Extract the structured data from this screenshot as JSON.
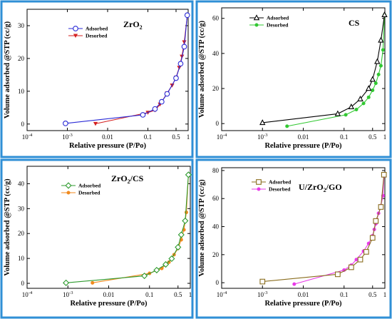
{
  "colors": {
    "frame": "#2f8fd6",
    "adsorbed": [
      "#2a2ad6",
      "#000000",
      "#2e9a2e",
      "#8a6d1e"
    ],
    "desorbed": [
      "#d42020",
      "#32c832",
      "#f08a1e",
      "#e83ae8"
    ]
  },
  "chart_data": [
    {
      "type": "line",
      "title": "ZrO",
      "title_sub": "2",
      "title_after": "",
      "xlabel": "Relative pressure (P/Po)",
      "ylabel": "Volume adsorbed @STP (cc/g)",
      "xscale": "log",
      "xlim": [
        0.0001,
        1
      ],
      "xticks": [
        0.0001,
        0.001,
        0.01,
        0.1,
        0.5,
        1
      ],
      "xticklabels": [
        "10-4",
        "10-3",
        "0.01",
        "0.1",
        "0.5",
        "1"
      ],
      "ylim": [
        -2,
        35
      ],
      "yticks": [
        0,
        10,
        20,
        30
      ],
      "yticklabels": [
        "0",
        "10",
        "20",
        "30"
      ],
      "legend": "top-left",
      "series": [
        {
          "name": "Adsorbed",
          "marker": "circle",
          "x": [
            0.0009,
            0.075,
            0.15,
            0.22,
            0.3,
            0.5,
            0.65,
            0.8,
            0.95
          ],
          "y": [
            0.2,
            2.8,
            4.6,
            6.8,
            9.2,
            14.0,
            18.4,
            23.6,
            33.2
          ]
        },
        {
          "name": "Desorbed",
          "marker": "triangle-down",
          "x": [
            0.005,
            0.1,
            0.15,
            0.2,
            0.3,
            0.4,
            0.5,
            0.6,
            0.7,
            0.8,
            0.95
          ],
          "y": [
            0.1,
            3.5,
            4.2,
            6.0,
            9.4,
            11.8,
            14.2,
            17.2,
            20.6,
            25.0,
            33.0
          ]
        }
      ]
    },
    {
      "type": "line",
      "title": "CS",
      "title_sub": "",
      "title_after": "",
      "xlabel": "Relative pressure (P/Po)",
      "ylabel": "Volume adsorbed @STP (cc/g)",
      "xscale": "log",
      "xlim": [
        0.0001,
        1
      ],
      "xticks": [
        0.0001,
        0.001,
        0.01,
        0.1,
        0.5,
        1
      ],
      "xticklabels": [
        "10-4",
        "10-3",
        "0.01",
        "0.1",
        "0.5",
        "1"
      ],
      "ylim": [
        -4,
        66
      ],
      "yticks": [
        0,
        20,
        40,
        60
      ],
      "yticklabels": [
        "0",
        "20",
        "40",
        "60"
      ],
      "legend": "top-left",
      "series": [
        {
          "name": "Adsorbed",
          "marker": "triangle-up",
          "x": [
            0.001,
            0.07,
            0.15,
            0.25,
            0.4,
            0.5,
            0.65,
            0.8,
            0.98
          ],
          "y": [
            0.5,
            5.6,
            9.5,
            14.0,
            20.0,
            25.2,
            35.3,
            47.5,
            62.0
          ]
        },
        {
          "name": "Desorbed",
          "marker": "circle-filled",
          "x": [
            0.004,
            0.11,
            0.2,
            0.3,
            0.4,
            0.5,
            0.6,
            0.7,
            0.8,
            0.9,
            0.98
          ],
          "y": [
            -1.5,
            5.0,
            8.0,
            11.5,
            15.0,
            19.0,
            23.0,
            28.0,
            33.0,
            42.0,
            62.0
          ]
        }
      ]
    },
    {
      "type": "line",
      "title": "ZrO",
      "title_sub": "2",
      "title_after": "/CS",
      "xlabel": "Relative pressure (P/Po)",
      "ylabel": "Volume adsorbed @STP (cc/g)",
      "xscale": "log",
      "xlim": [
        0.0001,
        1
      ],
      "xticks": [
        0.0001,
        0.001,
        0.01,
        0.1,
        0.5,
        1
      ],
      "xticklabels": [
        "10-4",
        "10-3",
        "0.01",
        "0.1",
        "0.5",
        "1"
      ],
      "ylim": [
        -2,
        47
      ],
      "yticks": [
        0,
        10,
        20,
        30,
        40
      ],
      "yticklabels": [
        "0",
        "10",
        "20",
        "30",
        "40"
      ],
      "legend": "top-left",
      "series": [
        {
          "name": "Adsorbed",
          "marker": "diamond",
          "x": [
            0.0009,
            0.075,
            0.15,
            0.25,
            0.35,
            0.5,
            0.6,
            0.75,
            0.9
          ],
          "y": [
            0.2,
            3.0,
            5.3,
            7.6,
            9.9,
            14.5,
            19.5,
            25.1,
            43.6
          ]
        },
        {
          "name": "Desorbed",
          "marker": "circle-filled",
          "x": [
            0.004,
            0.1,
            0.2,
            0.3,
            0.4,
            0.5,
            0.6,
            0.7,
            0.8,
            0.9
          ],
          "y": [
            0.2,
            4.0,
            6.0,
            8.5,
            11.5,
            14.0,
            17.5,
            21.5,
            28.5,
            43.5
          ]
        }
      ]
    },
    {
      "type": "line",
      "title": "U/ZrO",
      "title_sub": "2",
      "title_after": "/GO",
      "xlabel": "Relative pressure (P/Po)",
      "ylabel": "Volume adsorbed @STP (cc/g)",
      "xscale": "log",
      "xlim": [
        0.0001,
        1
      ],
      "xticks": [
        0.0001,
        0.001,
        0.01,
        0.1,
        0.5,
        1
      ],
      "xticklabels": [
        "10-4",
        "10-3",
        "0.01",
        "0.1",
        "0.5",
        "1"
      ],
      "ylim": [
        -4,
        82
      ],
      "yticks": [
        0,
        20,
        40,
        60,
        80
      ],
      "yticklabels": [
        "0",
        "20",
        "40",
        "60",
        "80"
      ],
      "legend": "top-left",
      "series": [
        {
          "name": "Adsorbed",
          "marker": "square",
          "x": [
            0.001,
            0.07,
            0.15,
            0.25,
            0.35,
            0.5,
            0.6,
            0.8,
            0.95
          ],
          "y": [
            0.8,
            6.0,
            11.0,
            16.5,
            22.0,
            32.0,
            44.0,
            54.0,
            77.0
          ]
        },
        {
          "name": "Desorbed",
          "marker": "circle-filled",
          "x": [
            0.006,
            0.1,
            0.15,
            0.2,
            0.3,
            0.4,
            0.5,
            0.55,
            0.6,
            0.7,
            0.8,
            0.9,
            0.95
          ],
          "y": [
            -1.0,
            9.0,
            12.5,
            16.5,
            22.5,
            28.0,
            33.5,
            38.0,
            42.0,
            49.5,
            55.0,
            62.0,
            76.0
          ]
        }
      ]
    }
  ]
}
